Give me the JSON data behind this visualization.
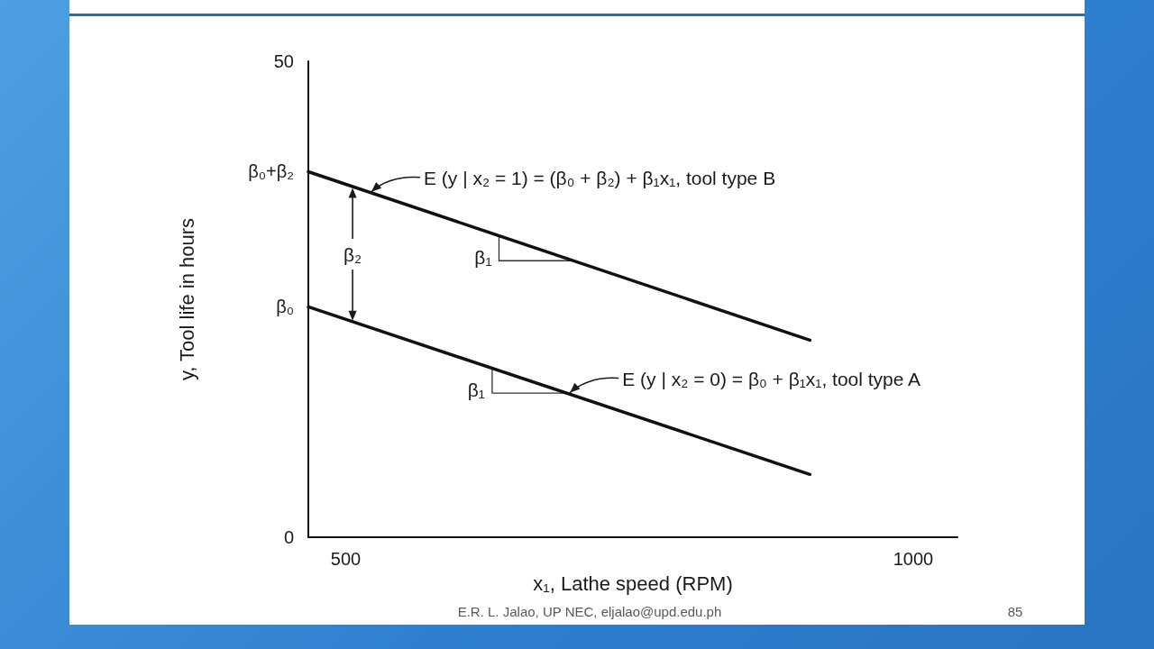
{
  "chart_data": {
    "type": "line",
    "xlabel": "x₁, Lathe speed (RPM)",
    "ylabel": "y, Tool life in hours",
    "x": [
      467,
      909
    ],
    "series": [
      {
        "color": "#111111",
        "values": [
          38.4,
          20.7
        ]
      },
      {
        "color": "#111111",
        "values": [
          24.2,
          6.6
        ]
      }
    ],
    "xlim": [
      467,
      1039
    ],
    "ylim": [
      0,
      50
    ],
    "xticks": [
      500,
      1000
    ],
    "yticks": [
      0,
      {
        "value": 24.2,
        "label": "β₀"
      },
      {
        "value": 38.4,
        "label": "β₀+β₂"
      },
      50
    ],
    "marker": "none",
    "line_style": "solid",
    "annotations": [
      {
        "text": "E (y | x₂ = 1) = (β₀ + β₂) + β₁x₁, tool type B",
        "x": 521,
        "y": 36.2
      },
      {
        "text": "E (y | x₂ = 0) = β₀ + β₁x₁, tool type A",
        "x": 696,
        "y": 15.1
      },
      {
        "text": "β₂",
        "x": 506,
        "y": 36.8
      },
      {
        "text": "β₁",
        "x": 635,
        "y": 31.7
      },
      {
        "text": "β₁",
        "x": 629,
        "y": 17.8
      },
      "E.R. L. Jalao, UP NEC, eljalao@upd.edu.ph",
      "85"
    ]
  }
}
